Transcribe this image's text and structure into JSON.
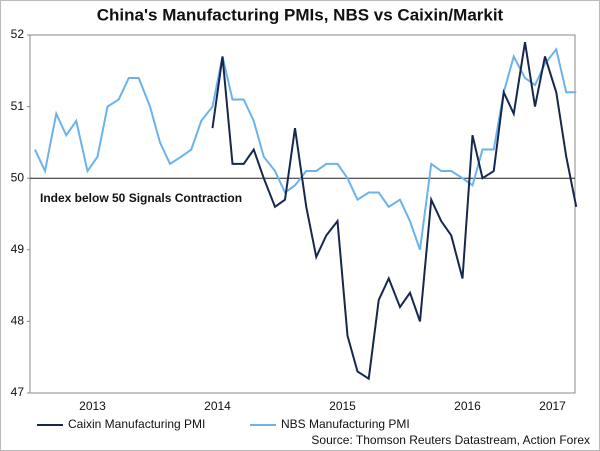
{
  "chart_data": {
    "type": "line",
    "title": "China's Manufacturing PMIs, NBS vs Caixin/Markit",
    "annotation": "Index below 50 Signals Contraction",
    "hline": 50,
    "source": "Source: Thomson Reuters Datastream, Action Forex",
    "x": [
      2013.04,
      2013.12,
      2013.21,
      2013.29,
      2013.37,
      2013.46,
      2013.54,
      2013.62,
      2013.71,
      2013.79,
      2013.87,
      2013.96,
      2014.04,
      2014.12,
      2014.21,
      2014.29,
      2014.37,
      2014.46,
      2014.54,
      2014.62,
      2014.71,
      2014.79,
      2014.87,
      2014.96,
      2015.04,
      2015.12,
      2015.21,
      2015.29,
      2015.37,
      2015.46,
      2015.54,
      2015.62,
      2015.71,
      2015.79,
      2015.87,
      2015.96,
      2016.04,
      2016.12,
      2016.21,
      2016.29,
      2016.37,
      2016.46,
      2016.54,
      2016.62,
      2016.71,
      2016.79,
      2016.87,
      2016.96,
      2017.04,
      2017.12,
      2017.21,
      2017.29,
      2017.37
    ],
    "series": [
      {
        "name": "Caixin Manufacturing PMI",
        "color": "#16284d",
        "values": [
          null,
          null,
          null,
          null,
          null,
          null,
          null,
          null,
          null,
          null,
          null,
          null,
          null,
          null,
          null,
          null,
          null,
          50.7,
          51.7,
          50.2,
          50.2,
          50.4,
          50.0,
          49.6,
          49.7,
          50.7,
          49.6,
          48.9,
          49.2,
          49.4,
          47.8,
          47.3,
          47.2,
          48.3,
          48.6,
          48.2,
          48.4,
          48.0,
          49.7,
          49.4,
          49.2,
          48.6,
          50.6,
          50.0,
          50.1,
          51.2,
          50.9,
          51.9,
          51.0,
          51.7,
          51.2,
          50.3,
          49.6
        ]
      },
      {
        "name": "NBS Manufacturing PMI",
        "color": "#6cb2ec",
        "values": [
          50.4,
          50.1,
          50.9,
          50.6,
          50.8,
          50.1,
          50.3,
          51.0,
          51.1,
          51.4,
          51.4,
          51.0,
          50.5,
          50.2,
          50.3,
          50.4,
          50.8,
          51.0,
          51.7,
          51.1,
          51.1,
          50.8,
          50.3,
          50.1,
          49.8,
          49.9,
          50.1,
          50.1,
          50.2,
          50.2,
          50.0,
          49.7,
          49.8,
          49.8,
          49.6,
          49.7,
          49.4,
          49.0,
          50.2,
          50.1,
          50.1,
          50.0,
          49.9,
          50.4,
          50.4,
          51.2,
          51.7,
          51.4,
          51.3,
          51.6,
          51.8,
          51.2,
          51.2
        ]
      }
    ],
    "xlim": [
      2013,
      2017.36
    ],
    "xticks": [
      {
        "value": 2013.5,
        "label": "2013"
      },
      {
        "value": 2014.5,
        "label": "2014"
      },
      {
        "value": 2015.5,
        "label": "2015"
      },
      {
        "value": 2016.5,
        "label": "2016"
      },
      {
        "value": 2017.18,
        "label": "2017"
      }
    ],
    "ylim": [
      47,
      52
    ],
    "yticks": [
      47,
      48,
      49,
      50,
      51,
      52
    ],
    "grid": false
  }
}
